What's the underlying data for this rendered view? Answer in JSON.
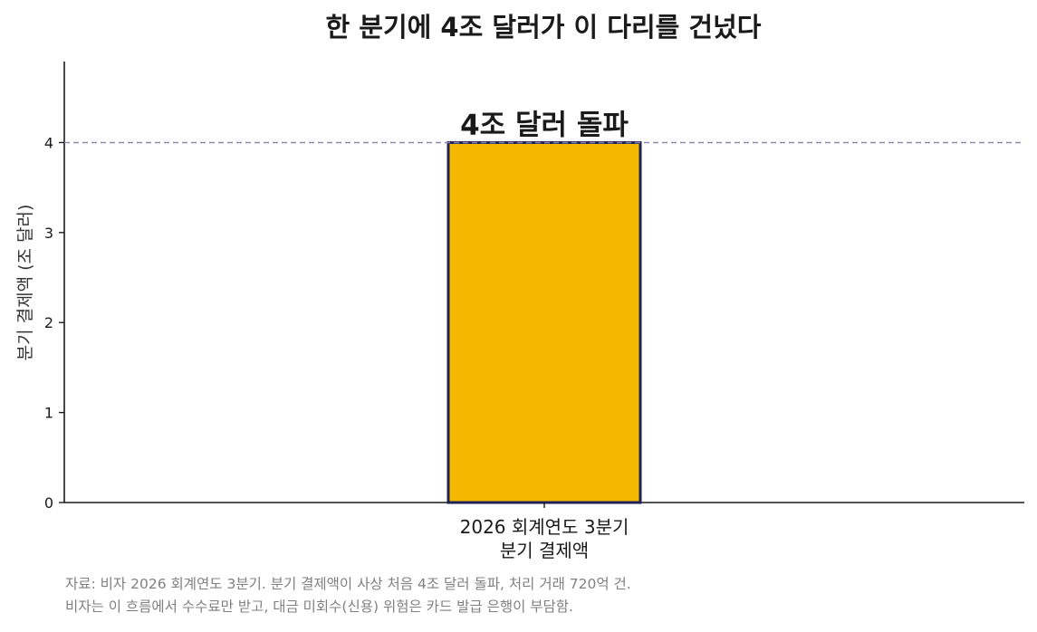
{
  "chart_data": {
    "type": "bar",
    "title": "한 분기에 4조 달러가 이 다리를 건넜다",
    "categories": [
      [
        "2026 회계연도 3분기",
        "분기 결제액"
      ]
    ],
    "values": [
      4.0
    ],
    "xlabel": "",
    "ylabel": "분기 결제액 (조 달러)",
    "ylim": [
      0,
      4.9
    ],
    "yticks": [
      0,
      1,
      2,
      3,
      4
    ],
    "grid": false,
    "reference_line": {
      "value": 4.0,
      "style": "dashed"
    },
    "annotations": [
      {
        "text": "4조 달러 돌파",
        "value": 4.0
      }
    ],
    "colors": {
      "bar": "#F5B800",
      "bar_edge": "#1F2357",
      "reference_line": "#8A8AA8",
      "axis": "#1a1a1a"
    }
  },
  "footnote": {
    "line1": "자료: 비자 2026 회계연도 3분기. 분기 결제액이 사상 처음 4조 달러 돌파, 처리 거래 720억 건.",
    "line2": "비자는 이 흐름에서 수수료만 받고, 대금 미회수(신용) 위험은 카드 발급 은행이 부담함."
  }
}
